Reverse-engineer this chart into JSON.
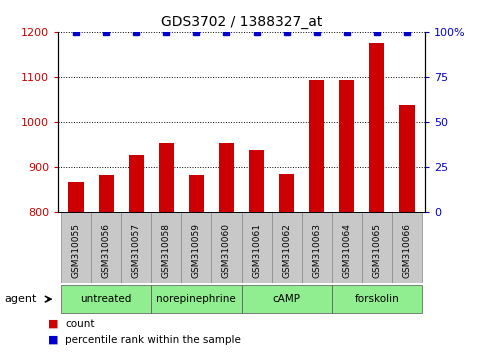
{
  "title": "GDS3702 / 1388327_at",
  "samples": [
    "GSM310055",
    "GSM310056",
    "GSM310057",
    "GSM310058",
    "GSM310059",
    "GSM310060",
    "GSM310061",
    "GSM310062",
    "GSM310063",
    "GSM310064",
    "GSM310065",
    "GSM310066"
  ],
  "counts": [
    868,
    882,
    928,
    953,
    882,
    953,
    938,
    884,
    1093,
    1093,
    1175,
    1038
  ],
  "percentile": [
    100,
    100,
    100,
    100,
    100,
    100,
    100,
    100,
    100,
    100,
    100,
    100
  ],
  "ylim_left": [
    800,
    1200
  ],
  "ylim_right": [
    0,
    100
  ],
  "yticks_left": [
    800,
    900,
    1000,
    1100,
    1200
  ],
  "yticks_right": [
    0,
    25,
    50,
    75,
    100
  ],
  "bar_color": "#cc0000",
  "dot_color": "#0000cc",
  "agent_groups": [
    {
      "label": "untreated",
      "start": 0,
      "end": 3
    },
    {
      "label": "norepinephrine",
      "start": 3,
      "end": 6
    },
    {
      "label": "cAMP",
      "start": 6,
      "end": 9
    },
    {
      "label": "forskolin",
      "start": 9,
      "end": 12
    }
  ],
  "agent_bg_color": "#90ee90",
  "sample_bg_color": "#c8c8c8",
  "plot_bg_color": "#ffffff",
  "legend_items": [
    {
      "color": "#cc0000",
      "label": "count"
    },
    {
      "color": "#0000cc",
      "label": "percentile rank within the sample"
    }
  ]
}
